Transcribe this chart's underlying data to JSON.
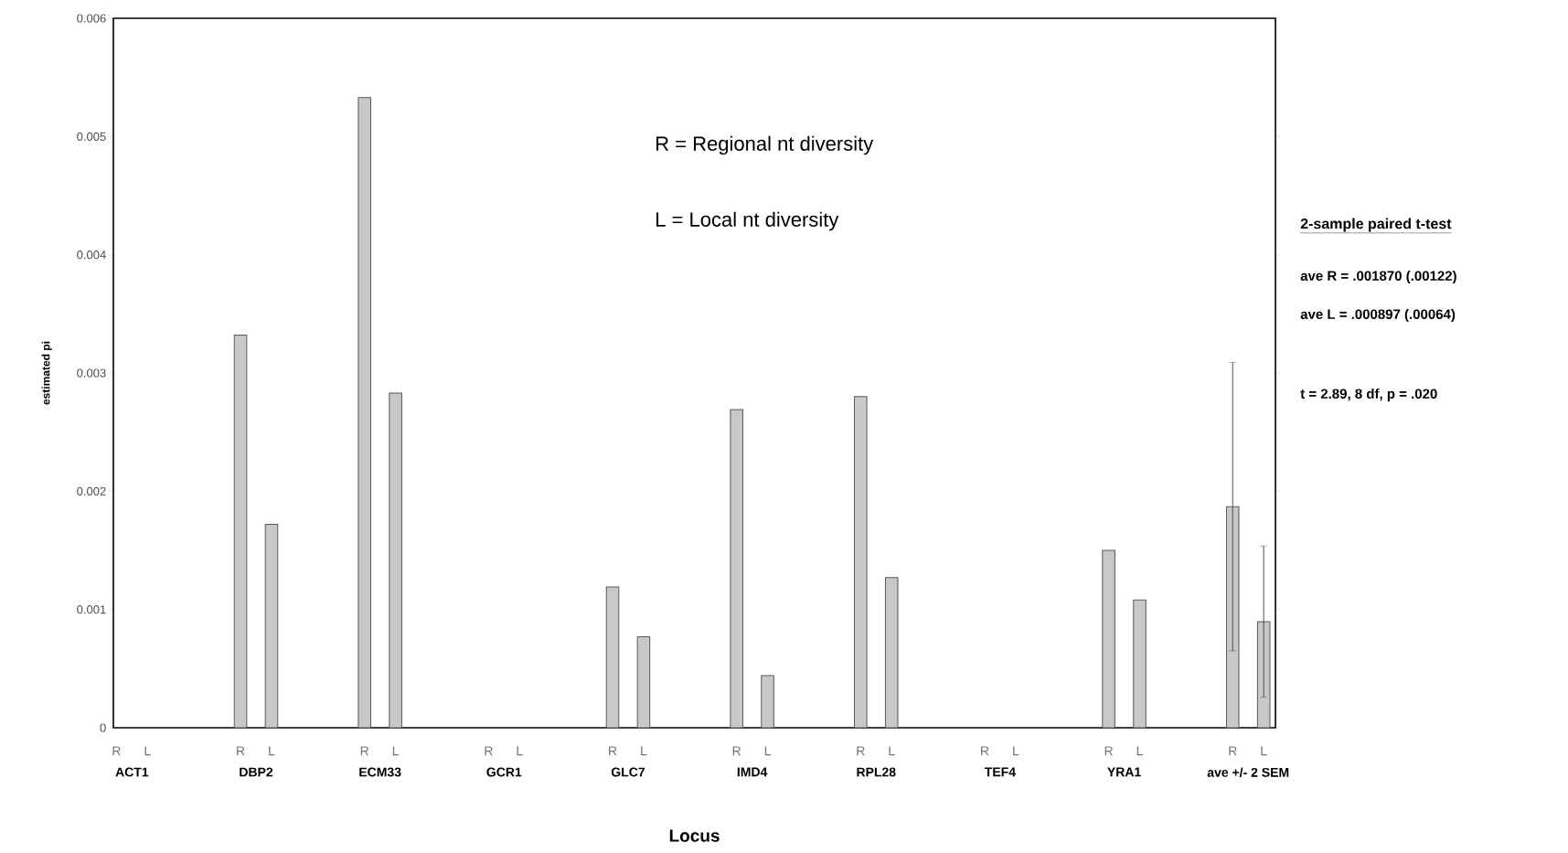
{
  "chart_data": {
    "type": "bar",
    "xlabel": "Locus",
    "ylabel": "estimated pi",
    "categories": [
      "ACT1",
      "DBP2",
      "ECM33",
      "GCR1",
      "GLC7",
      "IMD4",
      "RPL28",
      "TEF4",
      "YRA1",
      "ave +/- 2 SEM"
    ],
    "series": [
      {
        "name": "R",
        "color": "#c8c8c8",
        "values": [
          0,
          0.00332,
          0.00533,
          0,
          0.00119,
          0.00269,
          0.0028,
          0,
          0.0015,
          0.00187
        ],
        "errors": [
          null,
          null,
          null,
          null,
          null,
          null,
          null,
          null,
          null,
          0.00122
        ]
      },
      {
        "name": "L",
        "color": "#c8c8c8",
        "values": [
          0,
          0.00172,
          0.00283,
          0,
          0.00077,
          0.00044,
          0.00127,
          0,
          0.00108,
          0.000897
        ],
        "errors": [
          null,
          null,
          null,
          null,
          null,
          null,
          null,
          null,
          null,
          0.00064
        ]
      }
    ],
    "ylim": [
      0,
      0.006
    ],
    "yticks": [
      0,
      0.001,
      0.002,
      0.003,
      0.004,
      0.005,
      0.006
    ],
    "grid": false,
    "annotations": [
      "R = Regional nt diversity",
      "L = Local nt diversity",
      "**2-sample paired t-test**",
      "ave R = .001870 (.00122)",
      "ave L = .000897 (.00064)",
      "t = 2.89,   8 df,   p = .020"
    ]
  }
}
